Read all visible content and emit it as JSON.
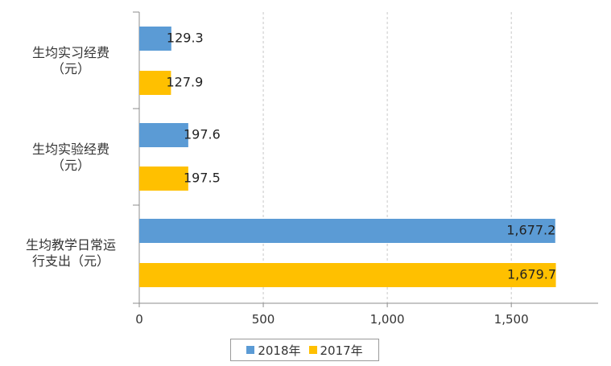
{
  "colors": {
    "series_2018": "#5B9BD5",
    "series_2017": "#FFC000",
    "grid": "#c8c8c8",
    "axis": "#8c8c8c",
    "text": "#333333"
  },
  "chart_data": {
    "type": "bar",
    "orientation": "horizontal",
    "categories": [
      [
        "生均实习经费",
        "（元）"
      ],
      [
        "生均实验经费",
        "（元）"
      ],
      [
        "生均教学日常运",
        "行支出（元）"
      ]
    ],
    "series": [
      {
        "name": "2018年",
        "values": [
          129.3,
          197.6,
          1677.2
        ],
        "labels": [
          "129.3",
          "197.6",
          "1,677.2"
        ]
      },
      {
        "name": "2017年",
        "values": [
          127.9,
          197.5,
          1679.7
        ],
        "labels": [
          "127.9",
          "197.5",
          "1,679.7"
        ]
      }
    ],
    "xlim": [
      0,
      1850
    ],
    "xticks": [
      0,
      500,
      1000,
      1500
    ],
    "xtick_labels": [
      "0",
      "500",
      "1,000",
      "1,500"
    ],
    "grid": true,
    "legend_position": "bottom"
  }
}
